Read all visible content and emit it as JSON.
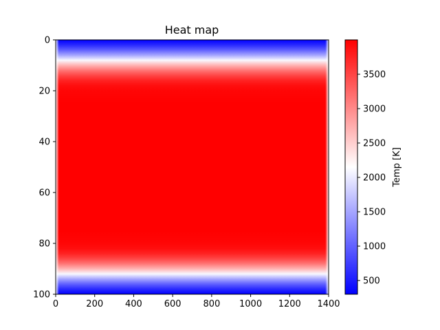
{
  "chart_data": {
    "type": "heatmap",
    "title": "Heat map",
    "xlabel": "",
    "ylabel": "",
    "xlim": [
      0,
      1400
    ],
    "ylim": [
      100,
      0
    ],
    "x_ticks": [
      0,
      200,
      400,
      600,
      800,
      1000,
      1200,
      1400
    ],
    "y_ticks": [
      0,
      20,
      40,
      60,
      80,
      100
    ],
    "colorbar": {
      "label": "Temp [K]",
      "range": [
        300,
        4000
      ],
      "ticks": [
        500,
        1000,
        1500,
        2000,
        2500,
        3000,
        3500
      ],
      "colormap": [
        "#0000ff",
        "#ffffff",
        "#ff0000"
      ]
    },
    "profile_y": [
      0,
      2,
      4,
      6,
      8,
      10,
      12,
      14,
      16,
      18,
      20,
      25,
      30,
      50,
      70,
      75,
      80,
      82,
      84,
      86,
      88,
      90,
      92,
      94,
      96,
      98,
      100
    ],
    "profile_temp": [
      300,
      600,
      1000,
      1500,
      2100,
      2700,
      3150,
      3500,
      3750,
      3900,
      3960,
      4000,
      4000,
      4000,
      4000,
      4000,
      3960,
      3900,
      3750,
      3500,
      3150,
      2700,
      2100,
      1500,
      1000,
      600,
      300
    ]
  }
}
